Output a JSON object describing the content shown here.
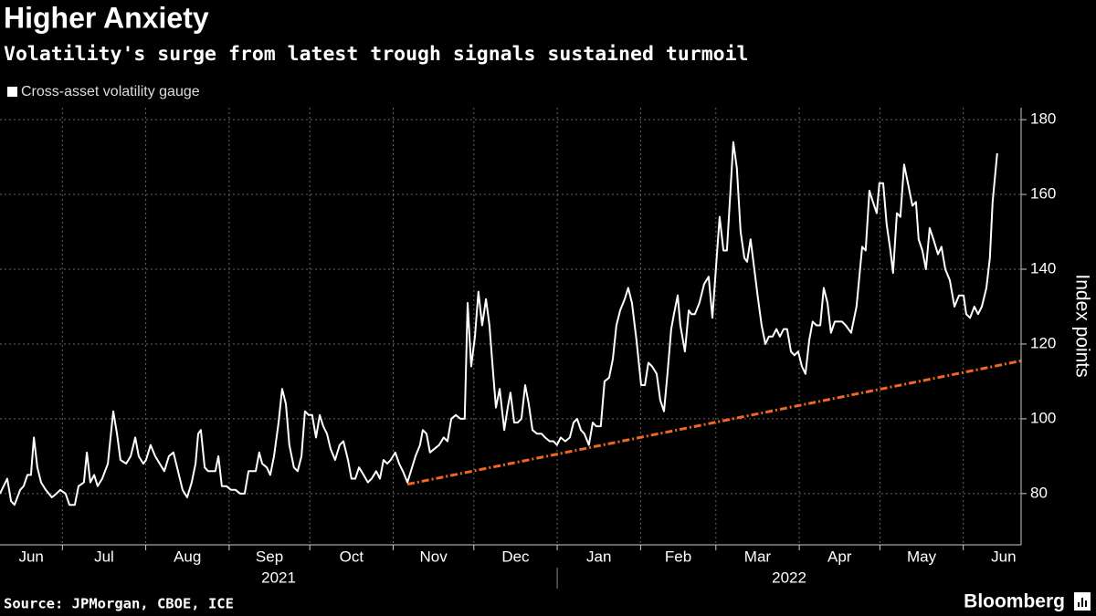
{
  "chart_data": {
    "type": "line",
    "title": "Higher Anxiety",
    "subtitle": "Volatility's surge from latest trough signals sustained turmoil",
    "y_label": "Index points",
    "x": [
      6.8,
      9.5,
      10.9,
      12.2,
      14.3,
      15.6,
      17.0,
      18.3,
      19.4,
      20.7,
      22.1,
      23.8,
      26.1,
      27.8,
      29.2,
      31.2,
      32.6,
      34.6,
      36.0,
      38.0,
      39.1,
      40.4,
      41.8,
      43.1,
      44.8,
      46.9,
      48.9,
      50.3,
      51.6,
      53.7,
      55.4,
      57.1,
      58.4,
      60.1,
      61.1,
      62.8,
      64.5,
      66.2,
      67.9,
      69.6,
      71.3,
      73.0,
      74.7,
      76.4,
      78.1,
      79.5,
      80.5,
      81.5,
      82.9,
      84.2,
      85.6,
      86.9,
      88.0,
      89.3,
      91.0,
      92.7,
      94.4,
      96.1,
      97.8,
      99.2,
      100.5,
      101.9,
      103.2,
      104.3,
      106.0,
      107.3,
      108.7,
      110.4,
      111.7,
      113.1,
      114.4,
      116.1,
      117.5,
      118.9,
      120.2,
      121.6,
      122.9,
      124.3,
      125.7,
      127.0,
      128.4,
      129.7,
      131.4,
      133.1,
      134.5,
      136.2,
      137.5,
      138.9,
      140.3,
      142.0,
      143.6,
      145.0,
      146.7,
      148.1,
      149.4,
      150.8,
      152.1,
      153.8,
      155.2,
      156.6,
      158.3,
      159.6,
      161.3,
      163.0,
      164.0,
      165.4,
      166.7,
      168.4,
      170.1,
      171.8,
      173.2,
      174.6,
      176.3,
      178.0,
      179.6,
      180.7,
      182.0,
      183.4,
      184.7,
      186.1,
      187.5,
      188.8,
      190.2,
      191.2,
      192.6,
      194.3,
      195.6,
      196.6,
      198.0,
      199.3,
      200.7,
      202.1,
      203.4,
      204.8,
      206.5,
      208.2,
      209.5,
      211.2,
      212.6,
      213.9,
      215.3,
      217.0,
      218.7,
      220.1,
      221.4,
      222.8,
      224.1,
      225.8,
      227.2,
      228.5,
      230.2,
      231.6,
      233.3,
      234.7,
      236.0,
      237.4,
      239.1,
      240.4,
      241.8,
      243.5,
      245.2,
      246.6,
      247.9,
      249.3,
      251.0,
      252.3,
      253.7,
      255.0,
      256.4,
      257.4,
      258.8,
      259.8,
      261.5,
      262.9,
      263.9,
      265.2,
      266.9,
      268.6,
      270.3,
      271.7,
      273.0,
      274.4,
      275.8,
      277.1,
      278.5,
      279.5,
      280.8,
      282.2,
      283.6,
      284.6,
      285.9,
      287.3,
      288.7,
      290.0,
      291.4,
      292.7,
      294.1,
      295.5,
      296.8,
      298.2,
      299.5,
      300.9,
      302.2,
      303.6,
      305.0,
      306.3,
      307.7,
      309.0,
      310.4,
      311.8,
      313.1,
      314.5,
      315.8,
      317.2,
      318.5,
      319.9,
      321.3,
      323.3,
      325.3,
      327.4,
      328.7,
      330.1,
      331.4,
      332.8,
      333.8,
      335.2,
      336.5,
      337.9,
      338.9,
      340.3,
      341.6,
      343.0,
      344.7,
      346.1,
      347.4,
      348.4,
      349.8,
      351.1,
      352.5,
      353.9,
      355.6,
      356.9,
      358.3,
      360.0,
      361.7,
      363.4,
      365.1,
      366.1,
      367.5,
      369.1,
      370.5,
      371.9,
      373.6,
      374.9,
      375.9,
      377.6
    ],
    "series": [
      {
        "name": "Cross-asset volatility gauge",
        "color": "#ffffff",
        "values": [
          80,
          84,
          78,
          77,
          81,
          82,
          85,
          85,
          95,
          87,
          83,
          81,
          79,
          80,
          81,
          80,
          77,
          77,
          82,
          83,
          91,
          83,
          85,
          82,
          84,
          88,
          102,
          96,
          89,
          88,
          90,
          95,
          90,
          88,
          89,
          93,
          90,
          88,
          86,
          90,
          91,
          86,
          81,
          79,
          83,
          88,
          96,
          97,
          87,
          86,
          86,
          86,
          90,
          82,
          82,
          81,
          81,
          80,
          80,
          86,
          86,
          86,
          91,
          88,
          87,
          85,
          90,
          99,
          108,
          104,
          93,
          87,
          86,
          90,
          102,
          101,
          101,
          95,
          101,
          98,
          96,
          92,
          89,
          93,
          94,
          89,
          84,
          84,
          87,
          85,
          83,
          84,
          86,
          84,
          89,
          88,
          89,
          91,
          88,
          86,
          83,
          86,
          90,
          93,
          97,
          96,
          91,
          92,
          93,
          95,
          94,
          100,
          101,
          100,
          100,
          131,
          114,
          122,
          134,
          125,
          132,
          125,
          112,
          103,
          108,
          97,
          103,
          107,
          99,
          99,
          100,
          109,
          104,
          97,
          96,
          96,
          95,
          94,
          94,
          93,
          95,
          94,
          95,
          99,
          100,
          97,
          96,
          93,
          99,
          98,
          98,
          110,
          111,
          116,
          125,
          129,
          132,
          135,
          131,
          121,
          109,
          109,
          115,
          114,
          112,
          105,
          102,
          112,
          124,
          128,
          133,
          125,
          118,
          129,
          128,
          128,
          131,
          136,
          138,
          127,
          140,
          154,
          145,
          145,
          162,
          174,
          167,
          150,
          143,
          142,
          148,
          140,
          132,
          125,
          120,
          122,
          122,
          124,
          122,
          124,
          124,
          118,
          117,
          118,
          114,
          112,
          121,
          126,
          125,
          125,
          135,
          131,
          123,
          126,
          126,
          126,
          125,
          123,
          130,
          146,
          145,
          161,
          158,
          155,
          163,
          163,
          152,
          145,
          139,
          155,
          154,
          168,
          162,
          157,
          158,
          148,
          145,
          140,
          151,
          148,
          144,
          146,
          140,
          137,
          130,
          133,
          133,
          128,
          127,
          130,
          128,
          130,
          135,
          143,
          158,
          171
        ]
      }
    ],
    "trend_line": {
      "x": [
        158.3,
        386.5
      ],
      "values": [
        82.5,
        115.5
      ],
      "color": "#f26522"
    },
    "xlim": [
      6.8,
      386.5
    ],
    "xticks": [
      {
        "value": 0,
        "label": "Jun"
      },
      {
        "value": 30,
        "label": "Jul"
      },
      {
        "value": 61,
        "label": "Aug"
      },
      {
        "value": 92,
        "label": "Sep"
      },
      {
        "value": 122,
        "label": "Oct"
      },
      {
        "value": 153,
        "label": "Nov"
      },
      {
        "value": 183,
        "label": "Dec"
      },
      {
        "value": 214,
        "label": "Jan"
      },
      {
        "value": 245,
        "label": "Feb"
      },
      {
        "value": 273,
        "label": "Mar"
      },
      {
        "value": 304,
        "label": "Apr"
      },
      {
        "value": 334,
        "label": "May"
      },
      {
        "value": 365,
        "label": "Jun"
      }
    ],
    "x_group_labels": [
      "2021",
      "2022"
    ],
    "ylim": [
      66.3,
      183.2
    ],
    "yticks": [
      80,
      100,
      120,
      140,
      160,
      180
    ],
    "grid": true
  },
  "footer": {
    "source": "Source: JPMorgan, CBOE, ICE",
    "brand": "Bloomberg"
  }
}
